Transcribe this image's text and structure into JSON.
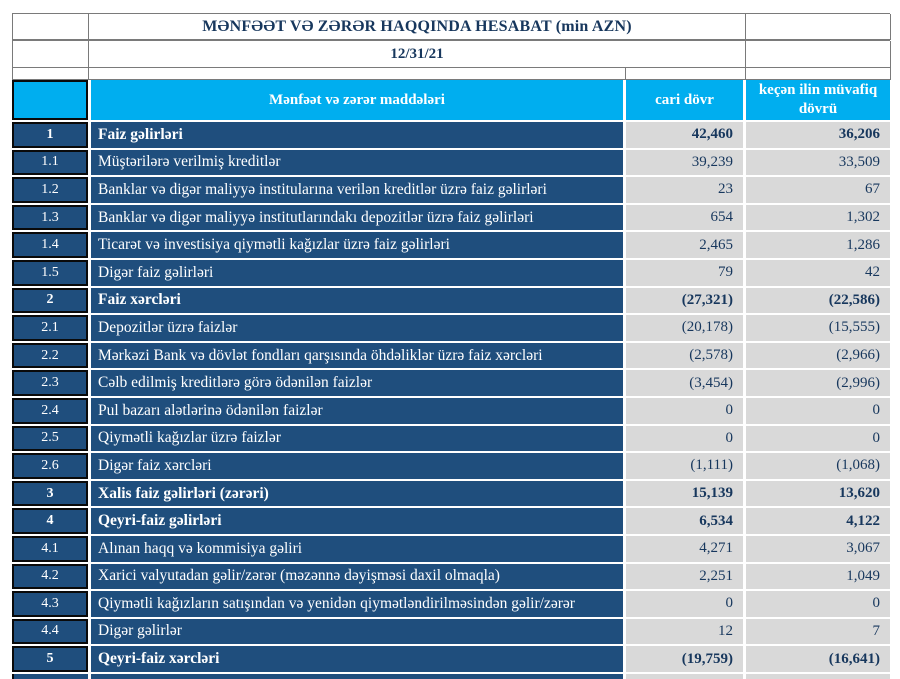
{
  "report": {
    "title": "MƏNFƏƏT VƏ ZƏRƏR HAQQINDA HESABAT (min AZN)",
    "date": "12/31/21"
  },
  "table": {
    "headers": {
      "corner": "",
      "items": "Mənfəət və zərər maddələri",
      "current": "cari dövr",
      "previous": "keçən ilin müvafiq dövrü"
    },
    "rows": [
      {
        "no": "1",
        "label": "Faiz  gəlirləri",
        "current": "42,460",
        "previous": "36,206",
        "bold": true
      },
      {
        "no": "1.1",
        "label": "Müştərilərə verilmiş kreditlər",
        "current": "39,239",
        "previous": "33,509",
        "bold": false
      },
      {
        "no": "1.2",
        "label": "Banklar və digər maliyyə institularına verilən kreditlər üzrə faiz gəlirləri",
        "current": "23",
        "previous": "67",
        "bold": false
      },
      {
        "no": "1.3",
        "label": "Banklar və digər maliyyə institutlarındakı depozitlər üzrə faiz gəlirləri",
        "current": "654",
        "previous": "1,302",
        "bold": false
      },
      {
        "no": "1.4",
        "label": "Ticarət və investisiya qiymətli kağızlar üzrə faiz gəlirləri",
        "current": "2,465",
        "previous": "1,286",
        "bold": false
      },
      {
        "no": "1.5",
        "label": "Digər faiz gəlirləri",
        "current": "79",
        "previous": "42",
        "bold": false
      },
      {
        "no": "2",
        "label": "Faiz xərcləri",
        "current": "(27,321)",
        "previous": "(22,586)",
        "bold": true
      },
      {
        "no": "2.1",
        "label": "Depozitlər üzrə faizlər",
        "current": "(20,178)",
        "previous": "(15,555)",
        "bold": false
      },
      {
        "no": "2.2",
        "label": "Mərkəzi Bank və dövlət fondları qarşısında öhdəliklər üzrə faiz xərcləri",
        "current": "(2,578)",
        "previous": "(2,966)",
        "bold": false
      },
      {
        "no": "2.3",
        "label": "Cəlb edilmiş kreditlərə görə ödənilən faizlər",
        "current": "(3,454)",
        "previous": "(2,996)",
        "bold": false
      },
      {
        "no": "2.4",
        "label": "Pul bazarı alətlərinə ödənilən faizlər",
        "current": "0",
        "previous": "0",
        "bold": false
      },
      {
        "no": "2.5",
        "label": "Qiymətli kağızlar üzrə faizlər",
        "current": "0",
        "previous": "0",
        "bold": false
      },
      {
        "no": "2.6",
        "label": "Digər faiz xərcləri",
        "current": "(1,111)",
        "previous": "(1,068)",
        "bold": false
      },
      {
        "no": "3",
        "label": "Xalis faiz gəlirləri (zərəri)",
        "current": "15,139",
        "previous": "13,620",
        "bold": true
      },
      {
        "no": "4",
        "label": "Qeyri-faiz gəlirləri",
        "current": "6,534",
        "previous": "4,122",
        "bold": true
      },
      {
        "no": "4.1",
        "label": "Alınan haqq və kommisiya gəliri",
        "current": "4,271",
        "previous": "3,067",
        "bold": false
      },
      {
        "no": "4.2",
        "label": "Xarici valyutadan gəlir/zərər (məzənnə dəyişməsi daxil olmaqla)",
        "current": "2,251",
        "previous": "1,049",
        "bold": false
      },
      {
        "no": "4.3",
        "label": "Qiymətli kağızların satışından və yenidən qiymətləndirilməsindən gəlir/zərər",
        "current": "0",
        "previous": "0",
        "bold": false
      },
      {
        "no": "4.4",
        "label": "Digər gəlirlər",
        "current": "12",
        "previous": "7",
        "bold": false
      },
      {
        "no": "5",
        "label": "Qeyri-faiz xərcləri",
        "current": "(19,759)",
        "previous": "(16,641)",
        "bold": true
      }
    ]
  },
  "colors": {
    "header_cyan": "#00AEEF",
    "row_navy": "#1F4E7D",
    "value_gray": "#D9D9D9",
    "value_text_navy": "#17375D",
    "title_text_navy": "#17375D",
    "grid_line_gray": "#7a7a7a",
    "number_cell_border": "#0a0a0a"
  }
}
